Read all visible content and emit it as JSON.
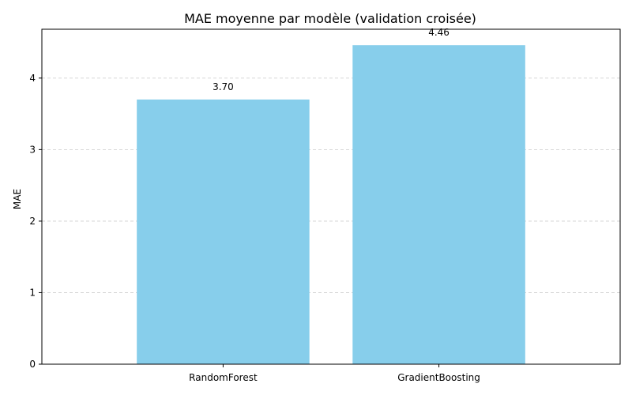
{
  "chart_data": {
    "type": "bar",
    "title": "MAE moyenne par modèle (validation croisée)",
    "xlabel": "",
    "ylabel": "MAE",
    "categories": [
      "RandomForest",
      "GradientBoosting"
    ],
    "values": [
      3.7,
      4.46
    ],
    "value_labels": [
      "3.70",
      "4.46"
    ],
    "yticks": [
      0,
      1,
      2,
      3,
      4
    ],
    "ylim": [
      0,
      4.683
    ],
    "grid": "horizontal dashed",
    "legend": "none",
    "bar_color": "#87ceeb"
  }
}
